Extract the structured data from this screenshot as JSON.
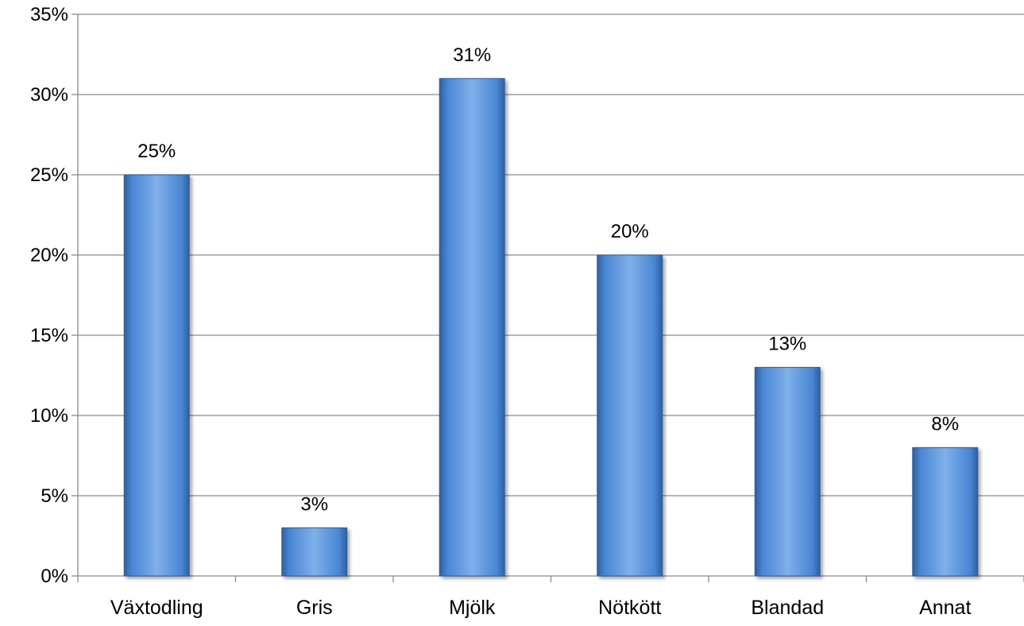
{
  "chart_data": {
    "type": "bar",
    "title": "",
    "xlabel": "",
    "ylabel": "",
    "categories": [
      "Växtodling",
      "Gris",
      "Mjölk",
      "Nötkött",
      "Blandad",
      "Annat"
    ],
    "series": [
      {
        "values": [
          25,
          3,
          31,
          20,
          13,
          8
        ]
      }
    ],
    "data_labels": [
      "25%",
      "3%",
      "31%",
      "20%",
      "13%",
      "8%"
    ],
    "ylim": [
      0,
      35
    ],
    "yticks": [
      0,
      5,
      10,
      15,
      20,
      25,
      30,
      35
    ],
    "ytick_labels": [
      "0%",
      "5%",
      "10%",
      "15%",
      "20%",
      "25%",
      "30%",
      "35%"
    ],
    "grid": true,
    "legend": "none",
    "colors": {
      "bar": "#4a86d4",
      "bar_dark": "#2f5f9e",
      "bar_light": "#7fb0ea",
      "grid": "#8c8c8c",
      "axis": "#8c8c8c"
    }
  }
}
